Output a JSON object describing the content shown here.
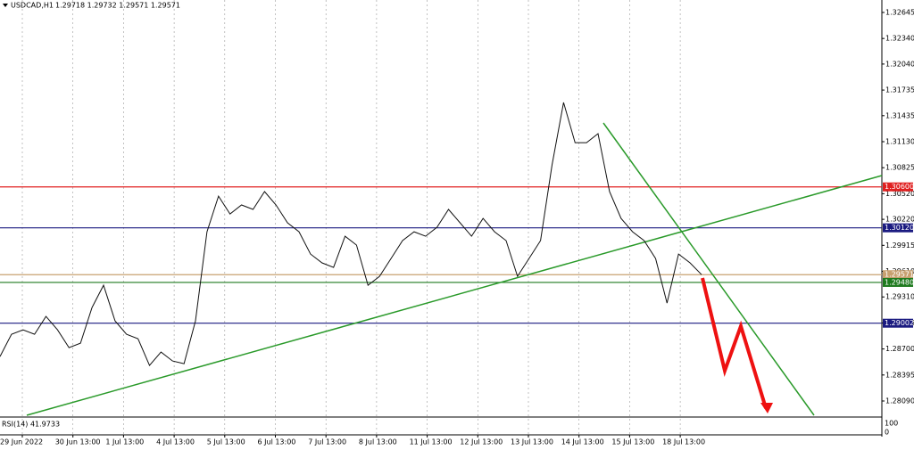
{
  "chart_data": {
    "type": "line",
    "title": "USDCAD,H1",
    "subtitle": "1.29718 1.29732 1.29571 1.29571",
    "color": "#111111",
    "values": [
      1.28611,
      1.28873,
      1.28925,
      1.28873,
      1.29082,
      1.28925,
      1.28716,
      1.28768,
      1.29186,
      1.29447,
      1.29029,
      1.28873,
      1.2882,
      1.28507,
      1.28664,
      1.28559,
      1.28528,
      1.29029,
      1.30074,
      1.30492,
      1.30283,
      1.30388,
      1.30336,
      1.30545,
      1.30388,
      1.30179,
      1.30074,
      1.29813,
      1.29709,
      1.29656,
      1.30022,
      1.29918,
      1.29447,
      1.29552,
      1.29761,
      1.2997,
      1.30074,
      1.30022,
      1.30127,
      1.30336,
      1.30179,
      1.30022,
      1.30231,
      1.30074,
      1.2997,
      1.29552,
      1.29761,
      1.2997,
      1.30858,
      1.3159,
      1.31119,
      1.31119,
      1.31224,
      1.30545,
      1.30231,
      1.30074,
      1.2997,
      1.29761,
      1.29238,
      1.29813,
      1.29709,
      1.29571
    ],
    "ylim": [
      1.27923,
      1.32791
    ],
    "yticks": [
      1.32645,
      {
        "value": 1.3234,
        "label": "1.32340"
      },
      {
        "value": 1.3204,
        "label": "1.32040"
      },
      1.31735,
      1.31435,
      {
        "value": 1.3113,
        "label": "1.31130"
      },
      1.30825,
      {
        "value": 1.3052,
        "label": "1.30520"
      },
      {
        "value": 1.3022,
        "label": "1.30220"
      },
      1.29915,
      {
        "value": 1.2961,
        "label": "1.29610"
      },
      {
        "value": 1.2931,
        "label": "1.29310"
      },
      1.29005,
      {
        "value": 1.287,
        "label": "1.28700"
      },
      1.28395,
      {
        "value": 1.2809,
        "label": "1.28090"
      }
    ],
    "xticks": [
      "29 Jun 2022",
      "30 Jun 13:00",
      "1 Jul 13:00",
      "4 Jul 13:00",
      "5 Jul 13:00",
      "6 Jul 13:00",
      "7 Jul 13:00",
      "8 Jul 13:00",
      "11 Jul 13:00",
      "12 Jul 13:00",
      "13 Jul 13:00",
      "14 Jul 13:00",
      "15 Jul 13:00",
      "18 Jul 13:00"
    ],
    "levels": [
      {
        "value": 1.306,
        "label": "1.30600",
        "color": "#e02020"
      },
      {
        "value": 1.3012,
        "label": "1.30120",
        "color": "#1a1a80"
      },
      {
        "value": 1.29571,
        "label": "1.29571",
        "color": "#c8a070"
      },
      {
        "value": 1.2948,
        "label": "1.29480",
        "color": "#1e7a1e"
      },
      {
        "value": 1.29002,
        "label": "1.29002",
        "color": "#1a1a80"
      }
    ],
    "indicator": {
      "label": "RSI(14) 41.9733",
      "yticks": [
        100,
        0
      ]
    }
  }
}
